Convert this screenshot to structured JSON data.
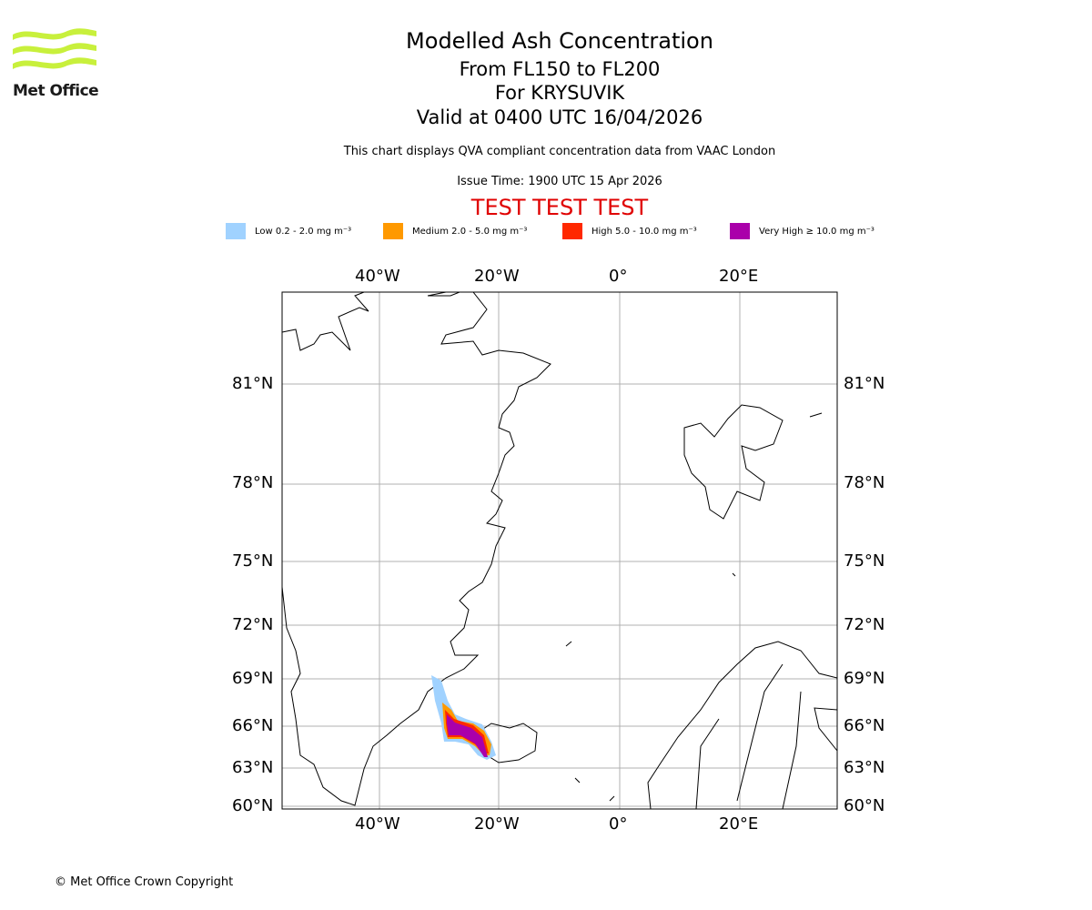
{
  "logo": {
    "text": "Met Office",
    "color": "#c8f03c"
  },
  "title": {
    "line1": "Modelled Ash Concentration",
    "line2": "From FL150 to FL200",
    "line3": "For KRYSUVIK",
    "line4": "Valid at 0400 UTC 16/04/2026"
  },
  "subtitle": "This chart displays QVA compliant concentration data from VAAC London",
  "issue_time": "Issue Time: 1900 UTC 15 Apr 2026",
  "test_banner": "TEST TEST TEST",
  "legend": [
    {
      "label": "Low 0.2 - 2.0 mg m⁻³",
      "color": "#a0d2ff"
    },
    {
      "label": "Medium 2.0 - 5.0 mg m⁻³",
      "color": "#ff9900"
    },
    {
      "label": "High 5.0 - 10.0 mg m⁻³",
      "color": "#ff2800"
    },
    {
      "label": "Very High ≥ 10.0 mg m⁻³",
      "color": "#aa00aa"
    }
  ],
  "map": {
    "lon_ticks": [
      "40°W",
      "20°W",
      "0°",
      "20°E"
    ],
    "lat_ticks": [
      "81°N",
      "78°N",
      "75°N",
      "72°N",
      "69°N",
      "66°N",
      "63°N",
      "60°N"
    ]
  },
  "copyright": "© Met Office Crown Copyright"
}
